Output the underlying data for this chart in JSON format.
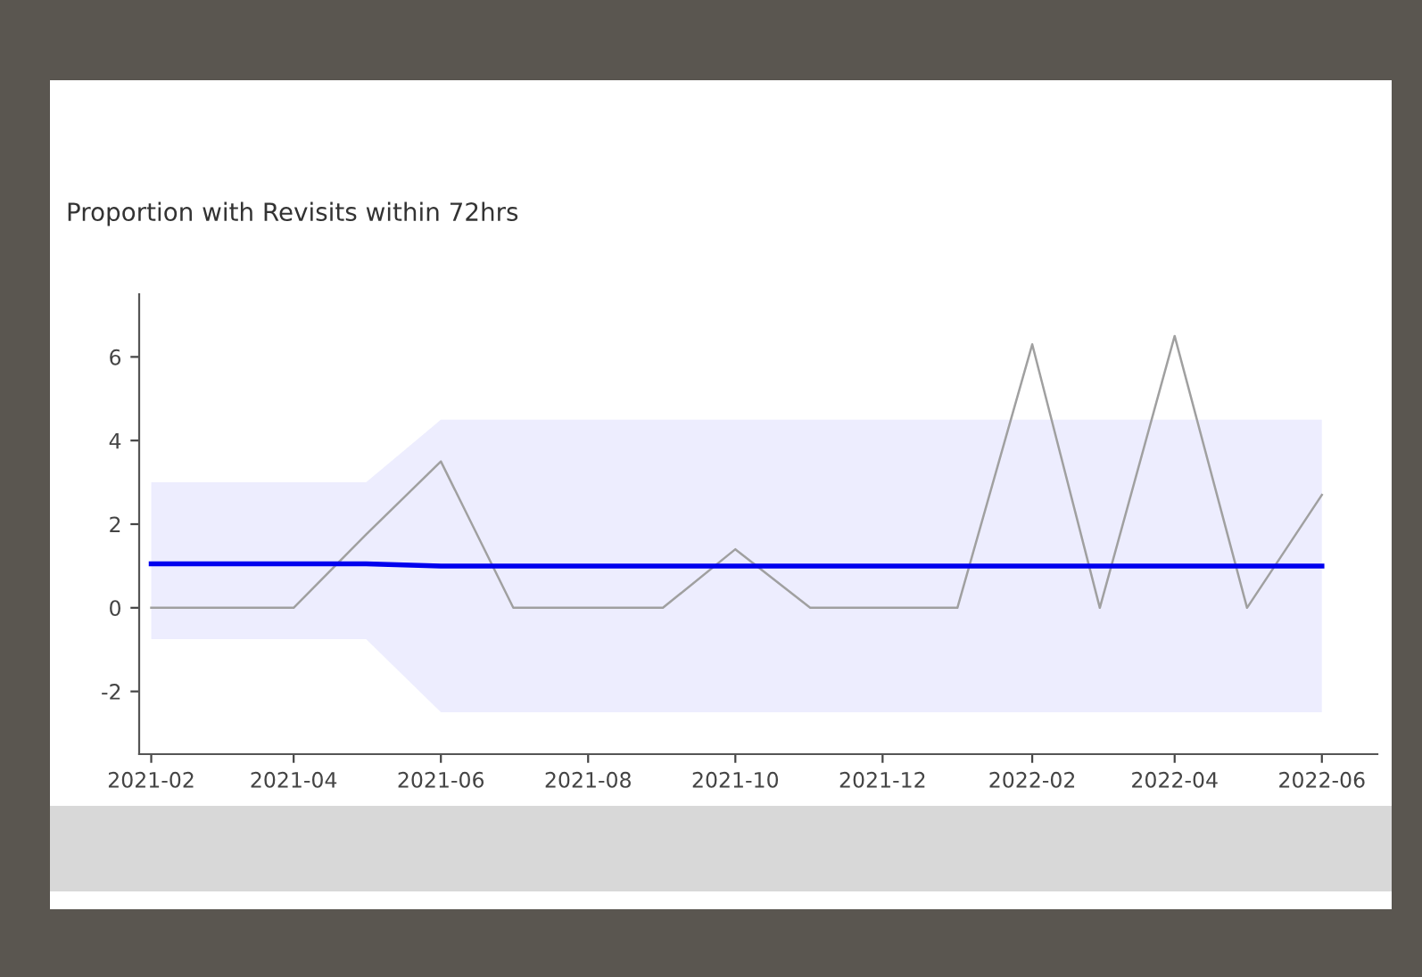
{
  "chart_data": {
    "type": "line",
    "title": "Proportion with Revisits within 72hrs",
    "x": [
      "2021-02",
      "2021-03",
      "2021-04",
      "2021-05",
      "2021-06",
      "2021-07",
      "2021-08",
      "2021-09",
      "2021-10",
      "2021-11",
      "2021-12",
      "2022-01",
      "2022-02",
      "2022-03",
      "2022-04",
      "2022-05",
      "2022-06"
    ],
    "series": [
      {
        "color": "#a0a0a0",
        "values": [
          0,
          0,
          0,
          1.75,
          3.5,
          0,
          0,
          0,
          1.4,
          0,
          0,
          0,
          6.3,
          0,
          6.5,
          0,
          2.7
        ]
      },
      {
        "color": "#0000ee",
        "values": [
          1.05,
          1.05,
          1.05,
          1.05,
          1.0,
          1.0,
          1.0,
          1.0,
          1.0,
          1.0,
          1.0,
          1.0,
          1.0,
          1.0,
          1.0,
          1.0,
          1.0
        ],
        "lower": [
          -0.75,
          -0.75,
          -0.75,
          -0.75,
          -2.5,
          -2.5,
          -2.5,
          -2.5,
          -2.5,
          -2.5,
          -2.5,
          -2.5,
          -2.5,
          -2.5,
          -2.5,
          -2.5,
          -2.5
        ],
        "upper": [
          3.0,
          3.0,
          3.0,
          3.0,
          4.5,
          4.5,
          4.5,
          4.5,
          4.5,
          4.5,
          4.5,
          4.5,
          4.5,
          4.5,
          4.5,
          4.5,
          4.5
        ]
      }
    ],
    "xlim": [
      "2021-01-27",
      "2022-06-24"
    ],
    "xticks": [
      {
        "value": "2021-02",
        "label": "2021-02"
      },
      {
        "value": "2021-04",
        "label": "2021-04"
      },
      {
        "value": "2021-06",
        "label": "2021-06"
      },
      {
        "value": "2021-08",
        "label": "2021-08"
      },
      {
        "value": "2021-10",
        "label": "2021-10"
      },
      {
        "value": "2021-12",
        "label": "2021-12"
      },
      {
        "value": "2022-02",
        "label": "2022-02"
      },
      {
        "value": "2022-04",
        "label": "2022-04"
      },
      {
        "value": "2022-06",
        "label": "2022-06"
      }
    ],
    "ylim": [
      -3.5,
      7.5
    ],
    "yticks": [
      -2,
      0,
      2,
      4,
      6
    ],
    "grid": false,
    "legend": false,
    "marker": "none",
    "line_style": "solid"
  }
}
